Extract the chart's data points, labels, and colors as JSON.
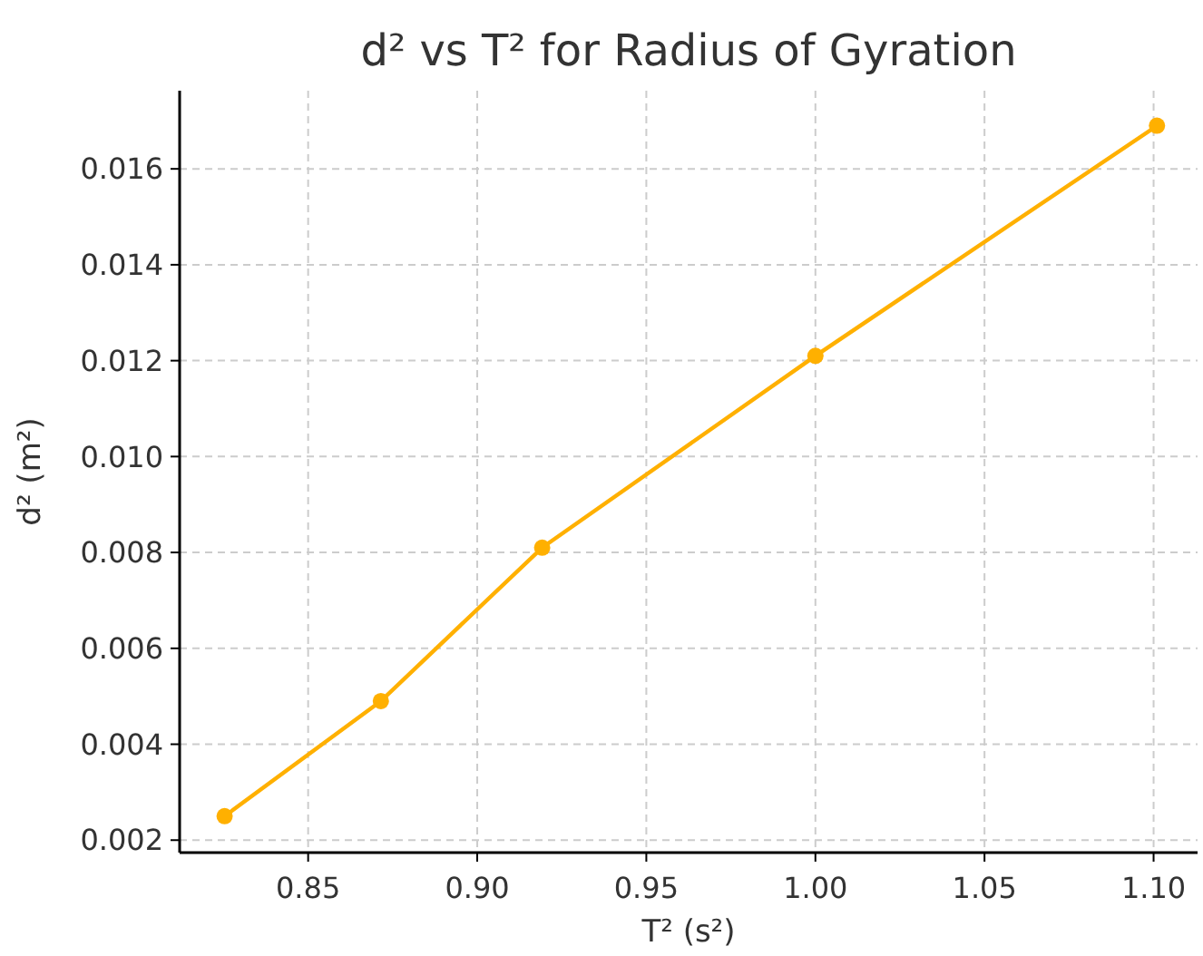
{
  "chart_data": {
    "type": "line",
    "title": "d² vs T² for Radius of Gyration",
    "xlabel": "T² (s²)",
    "ylabel": "d² (m²)",
    "x": [
      0.8253,
      0.8715,
      0.9192,
      1.0,
      1.101
    ],
    "series": [
      {
        "color": "#ffb000",
        "values": [
          0.0025,
          0.0049,
          0.0081,
          0.0121,
          0.0169
        ]
      }
    ],
    "xlim": [
      0.812,
      1.113
    ],
    "ylim": [
      0.00174,
      0.01763
    ],
    "xticks": [
      0.85,
      {
        "value": 0.9,
        "label": "0.90"
      },
      0.95,
      {
        "value": 1.0,
        "label": "1.00"
      },
      1.05,
      {
        "value": 1.1,
        "label": "1.10"
      }
    ],
    "yticks": [
      0.002,
      {
        "value": 0.004,
        "label": "0.004"
      },
      0.006,
      0.008,
      {
        "value": 0.01,
        "label": "0.010"
      },
      0.012,
      0.014,
      0.016
    ],
    "grid": true,
    "marker": "circle",
    "line_style": "solid"
  }
}
